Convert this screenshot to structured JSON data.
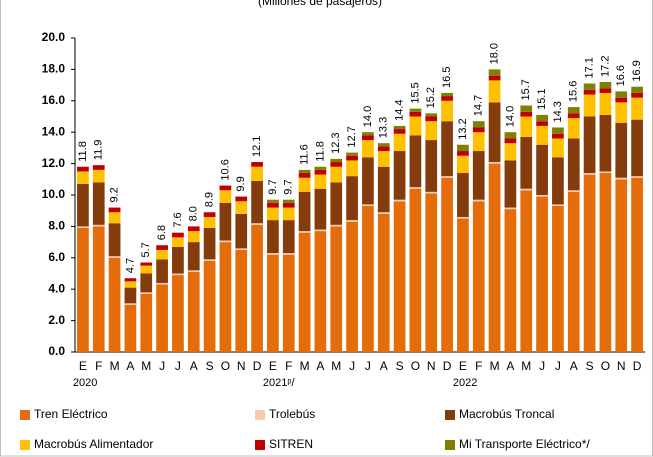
{
  "chart_data": {
    "type": "stacked_bar",
    "subtitle": "(Millones de pasajeros)",
    "categories": [
      "E",
      "F",
      "M",
      "A",
      "M",
      "J",
      "J",
      "A",
      "S",
      "O",
      "N",
      "D",
      "E",
      "F",
      "M",
      "A",
      "M",
      "J",
      "J",
      "A",
      "S",
      "O",
      "N",
      "D",
      "E",
      "F",
      "M",
      "A",
      "M",
      "J",
      "J",
      "A",
      "S",
      "O",
      "N",
      "D"
    ],
    "years": [
      "2020",
      null,
      null,
      null,
      null,
      null,
      null,
      null,
      null,
      null,
      null,
      null,
      "2021ᵖ/",
      null,
      null,
      null,
      null,
      null,
      null,
      null,
      null,
      null,
      null,
      null,
      "2022",
      null,
      null,
      null,
      null,
      null,
      null,
      null,
      null,
      null,
      null,
      null
    ],
    "series": [
      {
        "name": "Tren Eléctrico",
        "color": "#e46c0a",
        "values": [
          7.9,
          8.0,
          6.0,
          3.0,
          3.7,
          4.3,
          4.9,
          5.1,
          5.8,
          7.0,
          6.5,
          8.1,
          6.2,
          6.2,
          7.6,
          7.7,
          8.0,
          8.3,
          9.3,
          8.8,
          9.6,
          10.4,
          10.1,
          11.1,
          8.5,
          9.6,
          12.0,
          9.1,
          10.3,
          9.9,
          9.3,
          10.2,
          11.3,
          11.4,
          11.0,
          11.1
        ]
      },
      {
        "name": "Trolebús",
        "color": "#f8cbad",
        "values": [
          0.1,
          0.1,
          0.1,
          0.1,
          0.1,
          0.1,
          0.1,
          0.1,
          0.1,
          0.1,
          0.1,
          0.1,
          0.1,
          0.1,
          0.1,
          0.1,
          0.1,
          0.1,
          0.1,
          0.1,
          0.1,
          0.1,
          0.1,
          0.1,
          0.1,
          0.1,
          0.1,
          0.1,
          0.1,
          0.1,
          0.1,
          0.1,
          0.1,
          0.1,
          0.1,
          0.1
        ]
      },
      {
        "name": "Macrobús Troncal",
        "color": "#843c0c",
        "values": [
          2.7,
          2.7,
          2.1,
          1.0,
          1.2,
          1.5,
          1.7,
          1.8,
          2.0,
          2.4,
          2.2,
          2.7,
          2.1,
          2.1,
          2.5,
          2.6,
          2.7,
          2.8,
          3.0,
          2.9,
          3.1,
          3.3,
          3.3,
          3.5,
          2.8,
          3.1,
          3.8,
          3.0,
          3.3,
          3.2,
          3.0,
          3.3,
          3.6,
          3.6,
          3.5,
          3.6
        ]
      },
      {
        "name": "Macrobús Alimentador",
        "color": "#ffc000",
        "values": [
          0.8,
          0.8,
          0.7,
          0.4,
          0.5,
          0.6,
          0.6,
          0.7,
          0.7,
          0.8,
          0.8,
          0.9,
          0.8,
          0.8,
          0.9,
          0.9,
          1.0,
          1.0,
          1.1,
          1.0,
          1.1,
          1.2,
          1.2,
          1.3,
          1.1,
          1.2,
          1.4,
          1.1,
          1.3,
          1.2,
          1.2,
          1.3,
          1.4,
          1.4,
          1.3,
          1.4
        ]
      },
      {
        "name": "SITREN",
        "color": "#c00000",
        "values": [
          0.3,
          0.3,
          0.3,
          0.2,
          0.2,
          0.3,
          0.3,
          0.3,
          0.3,
          0.3,
          0.3,
          0.3,
          0.3,
          0.3,
          0.3,
          0.3,
          0.3,
          0.3,
          0.3,
          0.3,
          0.3,
          0.3,
          0.3,
          0.3,
          0.3,
          0.3,
          0.3,
          0.3,
          0.3,
          0.3,
          0.3,
          0.3,
          0.3,
          0.3,
          0.3,
          0.3
        ]
      },
      {
        "name": "Mi Transporte Eléctrico*/",
        "color": "#7f7f00",
        "values": [
          0,
          0,
          0,
          0,
          0,
          0,
          0,
          0,
          0,
          0,
          0,
          0,
          0.2,
          0.2,
          0.2,
          0.2,
          0.2,
          0.2,
          0.2,
          0.2,
          0.2,
          0.2,
          0.2,
          0.2,
          0.4,
          0.4,
          0.4,
          0.4,
          0.4,
          0.4,
          0.4,
          0.4,
          0.4,
          0.4,
          0.4,
          0.4
        ]
      }
    ],
    "totals": [
      11.8,
      11.9,
      9.2,
      4.7,
      5.7,
      6.8,
      7.6,
      8.0,
      8.9,
      10.6,
      9.9,
      12.1,
      9.7,
      9.7,
      11.6,
      11.8,
      12.3,
      12.7,
      14.0,
      13.3,
      14.4,
      15.5,
      15.2,
      16.5,
      13.2,
      14.7,
      18.0,
      14.0,
      15.7,
      15.1,
      14.3,
      15.6,
      17.1,
      17.2,
      16.6,
      16.9
    ],
    "value_labels": [
      "11.8",
      "11.9",
      "9.2",
      "4.7",
      "5.7",
      "6.8",
      "7.6",
      "8.0",
      "8.9",
      "10.6",
      "9.9",
      "12.1",
      "9.7",
      "9.7",
      "11.6",
      "11.8",
      "12.3",
      "12.7",
      "14.0",
      "13.3",
      "14.4",
      "15.5",
      "15.2",
      "16.5",
      "13.2",
      "14.7",
      "18.0",
      "14.0",
      "15.7",
      "15.1",
      "14.3",
      "15.6",
      "17.1",
      "17.2",
      "16.6",
      "16.9"
    ],
    "ylim": [
      0,
      20
    ],
    "yticks": [
      {
        "value": 0,
        "label": "0.0"
      },
      {
        "value": 2,
        "label": "2.0"
      },
      {
        "value": 4,
        "label": "4.0"
      },
      {
        "value": 6,
        "label": "6.0"
      },
      {
        "value": 8,
        "label": "8.0"
      },
      {
        "value": 10,
        "label": "10.0"
      },
      {
        "value": 12,
        "label": "12.0"
      },
      {
        "value": 14,
        "label": "14.0"
      },
      {
        "value": 16,
        "label": "16.0"
      },
      {
        "value": 18,
        "label": "18.0"
      },
      {
        "value": 20,
        "label": "20.0"
      }
    ]
  }
}
